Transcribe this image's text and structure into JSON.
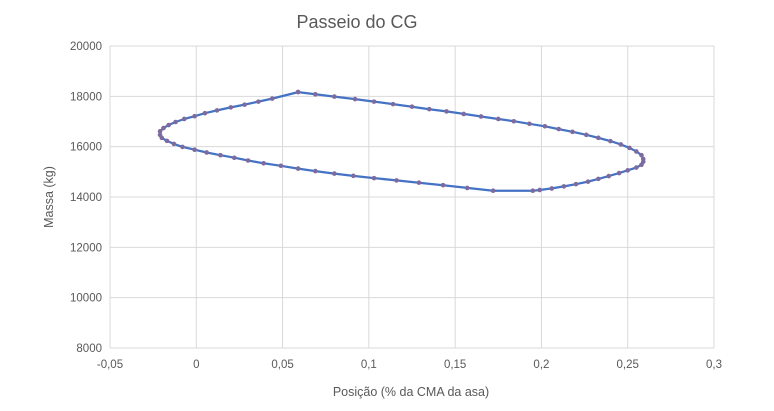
{
  "chart_data": {
    "type": "scatter",
    "title": "Passeio do CG",
    "xlabel": "Posição (% da CMA da asa)",
    "ylabel": "Massa (kg)",
    "xlim": [
      -0.05,
      0.3
    ],
    "ylim": [
      8000,
      20000
    ],
    "x_ticks": [
      "-0,05",
      "0",
      "0,05",
      "0,1",
      "0,15",
      "0,2",
      "0,25",
      "0,3"
    ],
    "y_ticks": [
      "8000",
      "10000",
      "12000",
      "14000",
      "16000",
      "18000",
      "20000"
    ],
    "grid": "horizontal",
    "legend": "none",
    "line_color": "#4472C4",
    "marker_color": "#7E6B9E",
    "series": [
      {
        "x": [
          0.059,
          0.069,
          0.08,
          0.092,
          0.103,
          0.114,
          0.125,
          0.135,
          0.145,
          0.155,
          0.165,
          0.175,
          0.184,
          0.193,
          0.202,
          0.21,
          0.218,
          0.226,
          0.233,
          0.24,
          0.246,
          0.251,
          0.255,
          0.258,
          0.259,
          0.259,
          0.258,
          0.255,
          0.25,
          0.245,
          0.239,
          0.233,
          0.227,
          0.22,
          0.213,
          0.206,
          0.199,
          0.195,
          0.172,
          0.157,
          0.143,
          0.129,
          0.116,
          0.103,
          0.091,
          0.08,
          0.069,
          0.059,
          0.049,
          0.039,
          0.03,
          0.022,
          0.014,
          0.006,
          -0.001,
          -0.008,
          -0.013,
          -0.017,
          -0.02,
          -0.021,
          -0.021,
          -0.019,
          -0.016,
          -0.012,
          -0.007,
          -0.001,
          0.005,
          0.012,
          0.02,
          0.028,
          0.036,
          0.044,
          0.059
        ],
        "y": [
          18170,
          18080,
          17990,
          17890,
          17790,
          17690,
          17590,
          17490,
          17400,
          17300,
          17200,
          17100,
          17010,
          16910,
          16810,
          16700,
          16590,
          16470,
          16350,
          16220,
          16090,
          15950,
          15810,
          15660,
          15510,
          15400,
          15280,
          15170,
          15060,
          14950,
          14830,
          14720,
          14610,
          14510,
          14420,
          14340,
          14280,
          14250,
          14250,
          14360,
          14470,
          14570,
          14660,
          14750,
          14840,
          14930,
          15030,
          15130,
          15240,
          15340,
          15450,
          15560,
          15660,
          15770,
          15880,
          15990,
          16110,
          16230,
          16350,
          16470,
          16610,
          16740,
          16860,
          16980,
          17100,
          17210,
          17330,
          17440,
          17560,
          17670,
          17790,
          17910,
          18170
        ]
      }
    ]
  }
}
